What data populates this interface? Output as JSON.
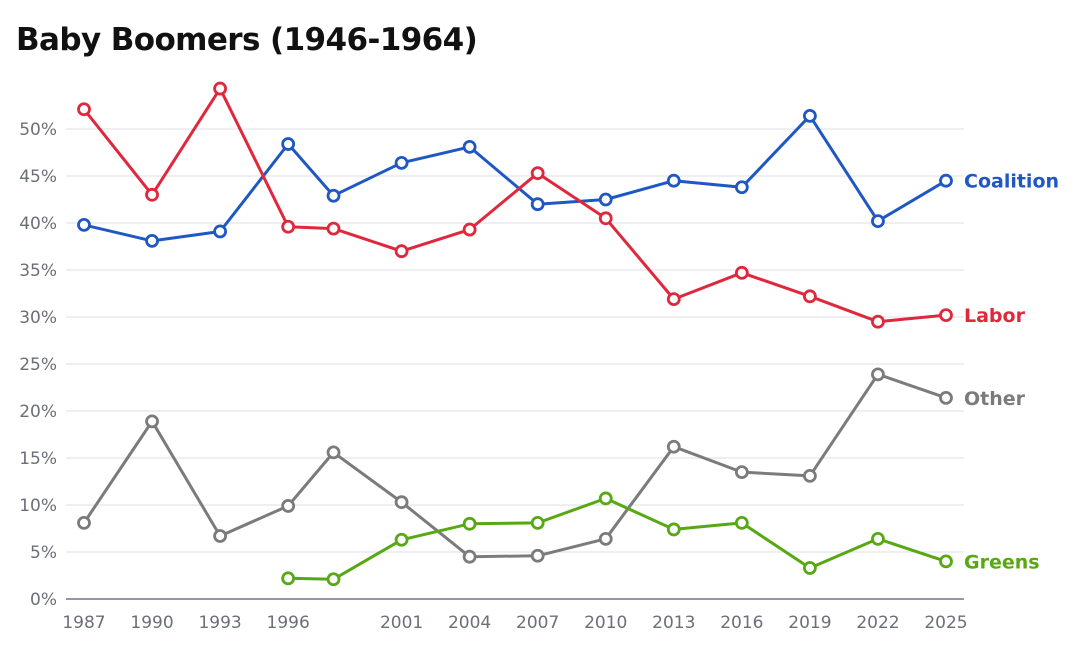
{
  "chart_data": {
    "type": "line",
    "title": "Baby Boomers (1946-1964)",
    "xlabel": "",
    "ylabel": "",
    "x": [
      1987,
      1990,
      1993,
      1996,
      1998,
      2001,
      2004,
      2007,
      2010,
      2013,
      2016,
      2019,
      2022,
      2025
    ],
    "x_tick_labels": [
      "1987",
      "1990",
      "1993",
      "1996",
      "",
      "2001",
      "2004",
      "2007",
      "2010",
      "2013",
      "2016",
      "2019",
      "2022",
      "2025"
    ],
    "y_ticks": [
      0,
      5,
      10,
      15,
      20,
      25,
      30,
      35,
      40,
      45,
      50
    ],
    "y_tick_labels": [
      "0%",
      "5%",
      "10%",
      "15%",
      "20%",
      "25%",
      "30%",
      "35%",
      "40%",
      "45%",
      "50%"
    ],
    "ylim": [
      0,
      55
    ],
    "grid": true,
    "legend": "labels at line ends (right)",
    "series": [
      {
        "name": "Coalition",
        "color": "#1f57c3",
        "values": [
          39.8,
          38.1,
          39.1,
          48.4,
          42.9,
          46.4,
          48.1,
          42.0,
          42.5,
          44.5,
          43.8,
          51.4,
          40.2,
          44.5
        ]
      },
      {
        "name": "Labor",
        "color": "#e0283d",
        "values": [
          52.1,
          43.0,
          54.3,
          39.6,
          39.4,
          37.0,
          39.3,
          45.3,
          40.5,
          31.9,
          34.7,
          32.2,
          29.5,
          30.2
        ]
      },
      {
        "name": "Other",
        "color": "#7b7b7b",
        "values": [
          8.1,
          18.9,
          6.7,
          9.9,
          15.6,
          10.3,
          4.5,
          4.6,
          6.4,
          16.2,
          13.5,
          13.1,
          23.9,
          21.4
        ]
      },
      {
        "name": "Greens",
        "color": "#58a813",
        "values": [
          null,
          null,
          null,
          2.2,
          2.1,
          6.3,
          8.0,
          8.1,
          10.7,
          7.4,
          8.1,
          3.3,
          6.4,
          4.0
        ]
      }
    ]
  }
}
